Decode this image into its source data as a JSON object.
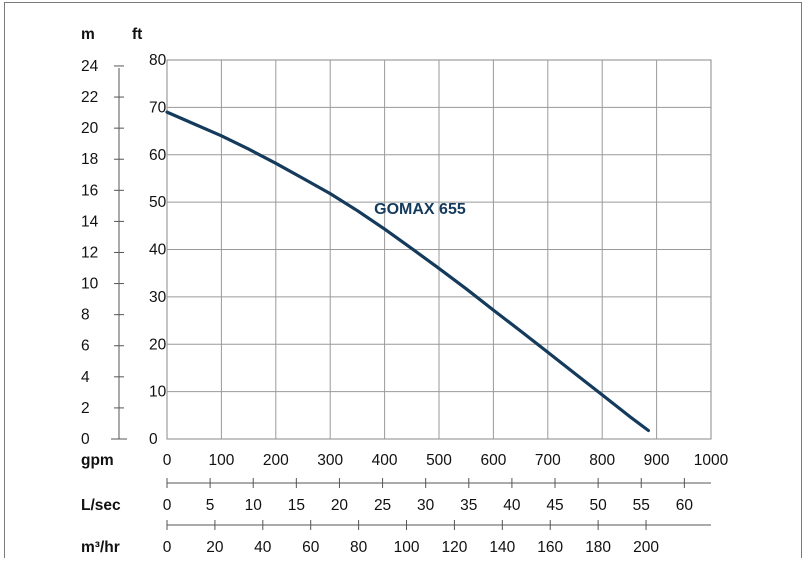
{
  "chart_data": {
    "type": "line",
    "title": "",
    "units": {
      "head_left": "m",
      "head_right": "ft",
      "flow_1": "gpm",
      "flow_2": "L/sec",
      "flow_3": "m³/hr"
    },
    "y_left_ticks": [
      "0",
      "2",
      "4",
      "6",
      "8",
      "10",
      "12",
      "14",
      "16",
      "18",
      "20",
      "22",
      "24"
    ],
    "y_right_ticks": [
      "0",
      "10",
      "20",
      "30",
      "40",
      "50",
      "60",
      "70",
      "80"
    ],
    "x_gpm_ticks": [
      "0",
      "100",
      "200",
      "300",
      "400",
      "500",
      "600",
      "700",
      "800",
      "900",
      "1000"
    ],
    "x_lsec_ticks": [
      "0",
      "5",
      "10",
      "15",
      "20",
      "25",
      "30",
      "35",
      "40",
      "45",
      "50",
      "55",
      "60"
    ],
    "x_m3hr_ticks": [
      "0",
      "20",
      "40",
      "60",
      "80",
      "100",
      "120",
      "140",
      "160",
      "180",
      "200"
    ],
    "xlim": [
      0,
      1000
    ],
    "ylim": [
      0,
      80
    ],
    "grid": true,
    "series": [
      {
        "name": "GOMAX 655",
        "color": "#143a5c",
        "x_unit": "gpm",
        "y_unit": "ft",
        "points": [
          [
            0,
            69
          ],
          [
            50,
            66.5
          ],
          [
            100,
            64
          ],
          [
            150,
            61.2
          ],
          [
            200,
            58.2
          ],
          [
            250,
            55
          ],
          [
            300,
            51.8
          ],
          [
            350,
            48.2
          ],
          [
            400,
            44.3
          ],
          [
            450,
            40.2
          ],
          [
            500,
            36
          ],
          [
            550,
            31.7
          ],
          [
            600,
            27.2
          ],
          [
            650,
            22.8
          ],
          [
            700,
            18.3
          ],
          [
            750,
            13.8
          ],
          [
            800,
            9.3
          ],
          [
            850,
            4.8
          ],
          [
            885,
            1.8
          ]
        ]
      }
    ]
  }
}
